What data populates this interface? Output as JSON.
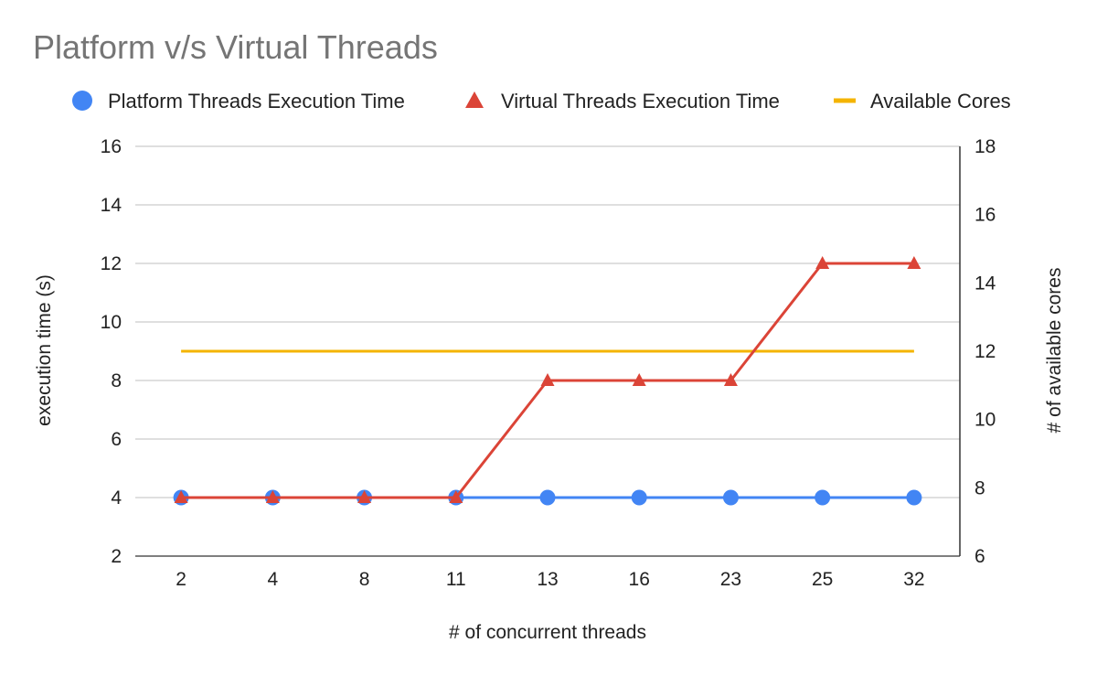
{
  "chart_data": {
    "type": "line",
    "title": "Platform v/s Virtual Threads",
    "xlabel": "# of concurrent threads",
    "ylabel": "execution time (s)",
    "y2label": "# of available cores",
    "categories": [
      "2",
      "4",
      "8",
      "11",
      "13",
      "16",
      "23",
      "25",
      "32"
    ],
    "ylim": [
      2,
      16
    ],
    "yticks": [
      "2",
      "4",
      "6",
      "8",
      "10",
      "12",
      "14",
      "16"
    ],
    "y2lim": [
      6,
      18
    ],
    "y2ticks": [
      "6",
      "8",
      "10",
      "12",
      "14",
      "16",
      "18"
    ],
    "grid": true,
    "legend_position": "top",
    "series": [
      {
        "name": "Platform Threads Execution Time",
        "axis": "left",
        "marker": "circle",
        "color": "#4285F4",
        "values": [
          4,
          4,
          4,
          4,
          4,
          4,
          4,
          4,
          4
        ]
      },
      {
        "name": "Virtual Threads Execution Time",
        "axis": "left",
        "marker": "triangle",
        "color": "#DB4437",
        "values": [
          4,
          4,
          4,
          4,
          8,
          8,
          8,
          12,
          12
        ]
      },
      {
        "name": "Available Cores",
        "axis": "right",
        "marker": "line",
        "color": "#F4B400",
        "values": [
          12,
          12,
          12,
          12,
          12,
          12,
          12,
          12,
          12
        ]
      }
    ]
  }
}
